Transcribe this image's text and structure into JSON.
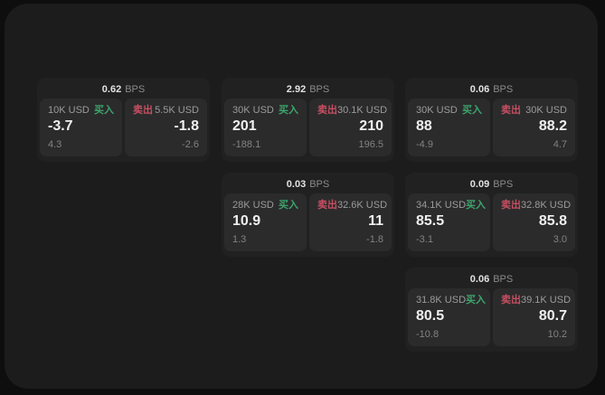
{
  "colors": {
    "buy": "#3da46c",
    "sell": "#c64f62",
    "panel": "#1c1c1c",
    "card": "#212122",
    "cell": "#2b2b2c"
  },
  "cards": [
    {
      "bps": "0.62",
      "unit": "BPS",
      "buy": {
        "size": "10K USD",
        "tag": "买入",
        "value": "-3.7",
        "sub": "4.3"
      },
      "sell": {
        "tag": "卖出",
        "size": "5.5K USD",
        "value": "-1.8",
        "sub": "-2.6"
      }
    },
    {
      "bps": "2.92",
      "unit": "BPS",
      "buy": {
        "size": "30K USD",
        "tag": "买入",
        "value": "201",
        "sub": "-188.1"
      },
      "sell": {
        "tag": "卖出",
        "size": "30.1K USD",
        "value": "210",
        "sub": "196.5"
      }
    },
    {
      "bps": "0.06",
      "unit": "BPS",
      "buy": {
        "size": "30K USD",
        "tag": "买入",
        "value": "88",
        "sub": "-4.9"
      },
      "sell": {
        "tag": "卖出",
        "size": "30K USD",
        "value": "88.2",
        "sub": "4.7"
      }
    },
    {
      "bps": "0.03",
      "unit": "BPS",
      "buy": {
        "size": "28K USD",
        "tag": "买入",
        "value": "10.9",
        "sub": "1.3"
      },
      "sell": {
        "tag": "卖出",
        "size": "32.6K USD",
        "value": "11",
        "sub": "-1.8"
      }
    },
    {
      "bps": "0.09",
      "unit": "BPS",
      "buy": {
        "size": "34.1K USD",
        "tag": "买入",
        "value": "85.5",
        "sub": "-3.1"
      },
      "sell": {
        "tag": "卖出",
        "size": "32.8K USD",
        "value": "85.8",
        "sub": "3.0"
      }
    },
    {
      "bps": "0.06",
      "unit": "BPS",
      "buy": {
        "size": "31.8K USD",
        "tag": "买入",
        "value": "80.5",
        "sub": "-10.8"
      },
      "sell": {
        "tag": "卖出",
        "size": "39.1K USD",
        "value": "80.7",
        "sub": "10.2"
      }
    }
  ]
}
